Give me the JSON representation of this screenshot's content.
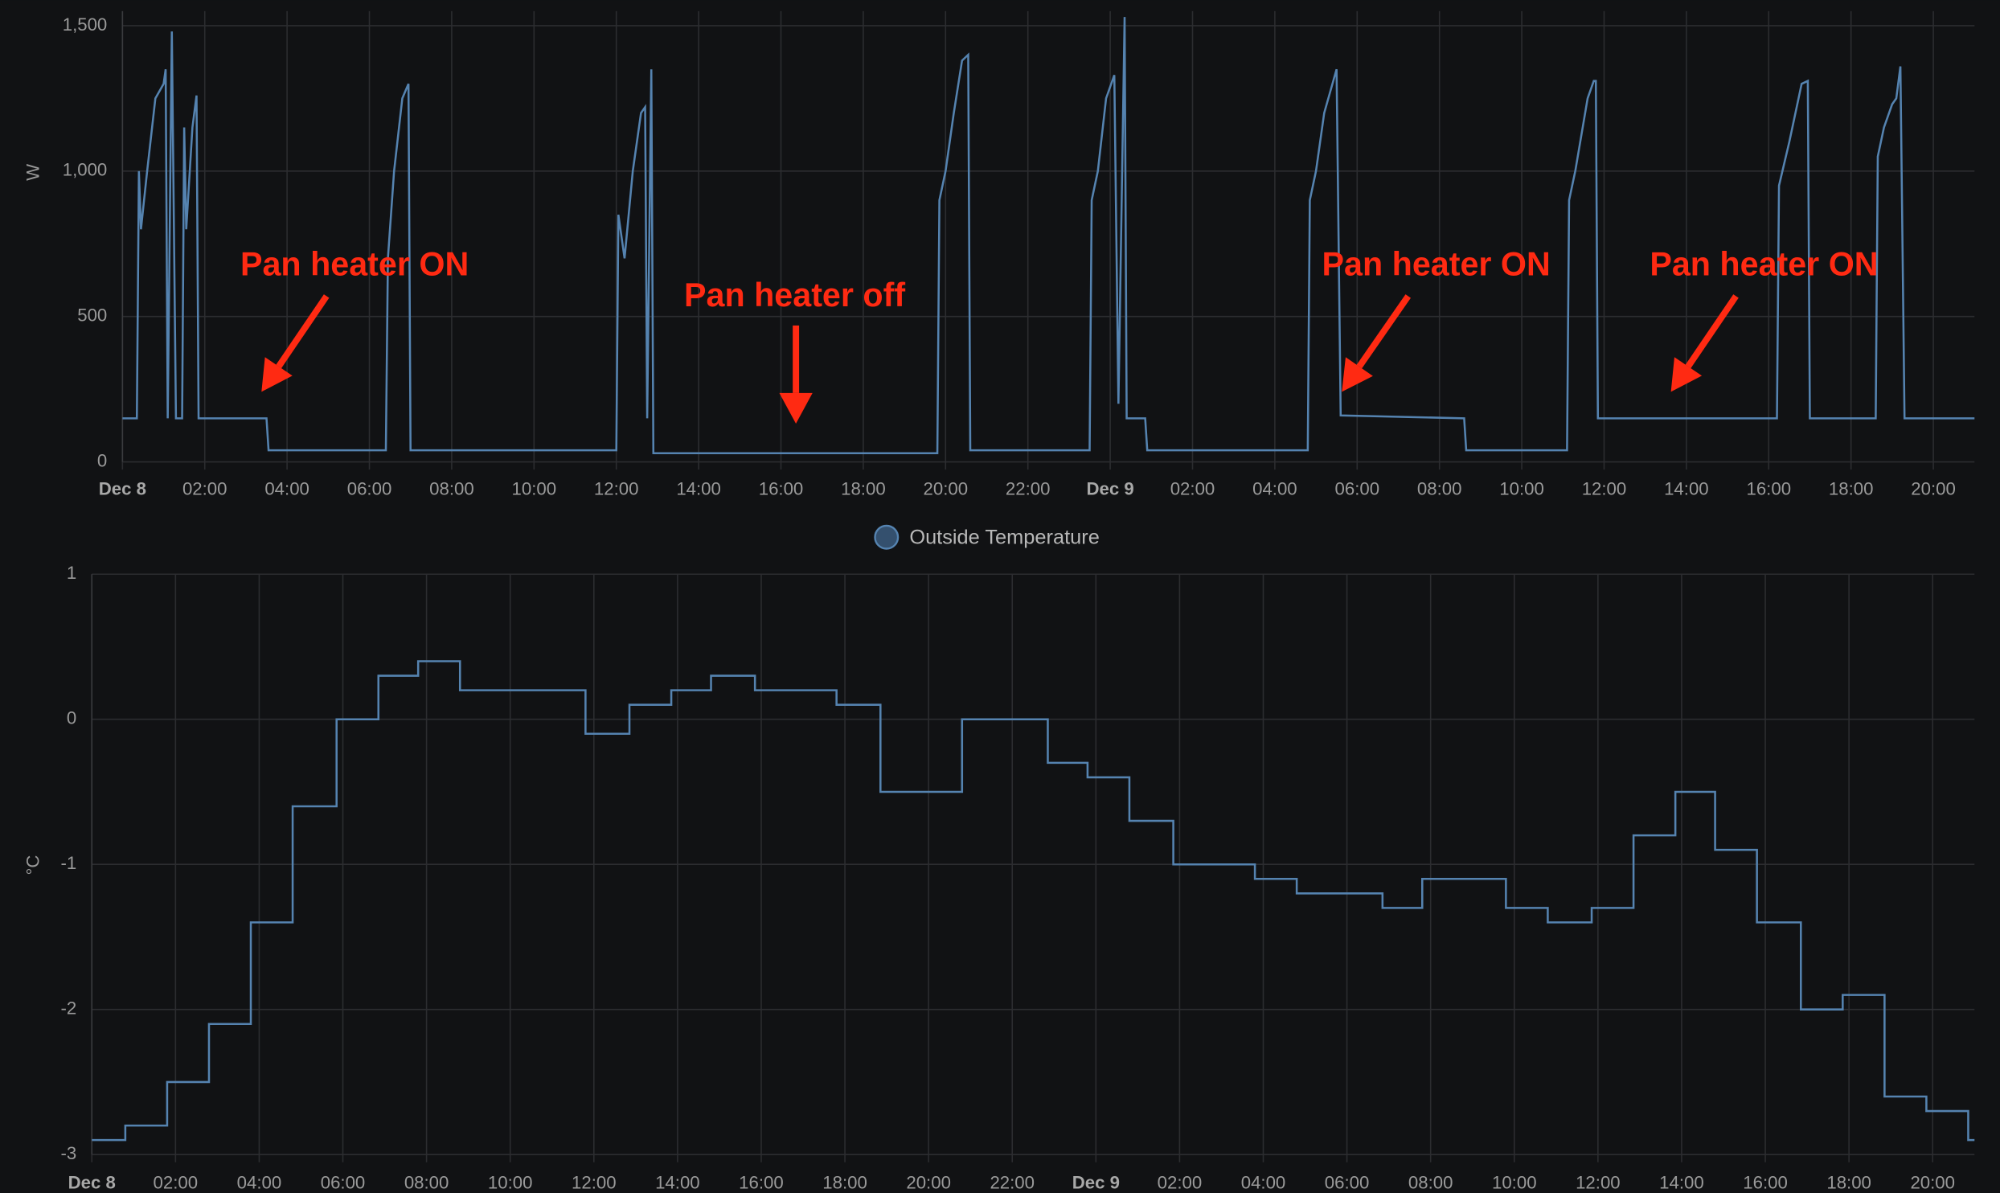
{
  "chart_data": [
    {
      "type": "line",
      "ylabel": "W",
      "x": [
        0,
        0.35,
        0.4,
        0.45,
        0.6,
        0.8,
        1.0,
        1.05,
        1.1,
        1.2,
        1.3,
        1.45,
        1.5,
        1.55,
        1.7,
        1.8,
        1.85,
        3.5,
        3.55,
        6.4,
        6.45,
        6.6,
        6.8,
        6.95,
        7.0,
        12.0,
        12.05,
        12.2,
        12.4,
        12.6,
        12.7,
        12.75,
        12.85,
        12.9,
        19.8,
        19.85,
        20.0,
        20.2,
        20.4,
        20.55,
        20.6,
        23.5,
        23.55,
        23.7,
        23.9,
        24.1,
        24.2,
        24.35,
        24.4,
        24.85,
        24.9,
        28.8,
        28.85,
        29.0,
        29.2,
        29.5,
        29.6,
        32.6,
        32.65,
        35.1,
        35.15,
        35.3,
        35.6,
        35.75,
        35.8,
        35.85,
        40.2,
        40.25,
        40.5,
        40.8,
        40.95,
        41.0,
        42.6,
        42.65,
        42.8,
        43.0,
        43.1,
        43.2,
        43.3,
        45
      ],
      "series": [
        {
          "color": "#5583b0",
          "values": [
            150,
            150,
            1000,
            800,
            1000,
            1250,
            1300,
            1350,
            150,
            1480,
            150,
            150,
            1150,
            800,
            1150,
            1260,
            150,
            150,
            40,
            40,
            700,
            1000,
            1250,
            1300,
            40,
            40,
            850,
            700,
            1000,
            1200,
            1220,
            150,
            1350,
            30,
            30,
            900,
            1000,
            1200,
            1380,
            1400,
            40,
            40,
            900,
            1000,
            1250,
            1330,
            200,
            1530,
            150,
            150,
            40,
            40,
            900,
            1000,
            1200,
            1350,
            160,
            150,
            40,
            40,
            900,
            1000,
            1250,
            1310,
            1310,
            150,
            150,
            950,
            1100,
            1300,
            1310,
            150,
            150,
            1050,
            1150,
            1230,
            1250,
            1360,
            150,
            150
          ]
        }
      ],
      "xlim": [
        0,
        45
      ],
      "xticks": [
        {
          "value": 0,
          "label": "Dec 8"
        },
        {
          "value": 2,
          "label": "02:00"
        },
        {
          "value": 4,
          "label": "04:00"
        },
        {
          "value": 6,
          "label": "06:00"
        },
        {
          "value": 8,
          "label": "08:00"
        },
        {
          "value": 10,
          "label": "10:00"
        },
        {
          "value": 12,
          "label": "12:00"
        },
        {
          "value": 14,
          "label": "14:00"
        },
        {
          "value": 16,
          "label": "16:00"
        },
        {
          "value": 18,
          "label": "18:00"
        },
        {
          "value": 20,
          "label": "20:00"
        },
        {
          "value": 22,
          "label": "22:00"
        },
        {
          "value": 24,
          "label": "Dec 9"
        },
        {
          "value": 26,
          "label": "02:00"
        },
        {
          "value": 28,
          "label": "04:00"
        },
        {
          "value": 30,
          "label": "06:00"
        },
        {
          "value": 32,
          "label": "08:00"
        },
        {
          "value": 34,
          "label": "10:00"
        },
        {
          "value": 36,
          "label": "12:00"
        },
        {
          "value": 38,
          "label": "14:00"
        },
        {
          "value": 40,
          "label": "16:00"
        },
        {
          "value": 42,
          "label": "18:00"
        },
        {
          "value": 44,
          "label": "20:00"
        }
      ],
      "ylim": [
        0,
        1550
      ],
      "yticks": [
        0,
        500,
        {
          "value": 1000,
          "label": "1,000"
        },
        {
          "value": 1500,
          "label": "1,500"
        }
      ],
      "grid": true,
      "step": false,
      "annotations": [
        "Pan heater ON",
        "Pan heater off",
        "Pan heater ON",
        "Pan heater ON"
      ]
    },
    {
      "type": "line",
      "ylabel": "°C",
      "x": [
        0,
        0.8,
        1.8,
        2.8,
        3.8,
        4.8,
        5.85,
        6.85,
        7.8,
        8.8,
        11.8,
        12.85,
        13.85,
        14.8,
        15.85,
        17.8,
        18.85,
        20.8,
        22.85,
        23.8,
        24.8,
        25.85,
        27.8,
        28.8,
        30.85,
        31.8,
        33.8,
        34.8,
        35.85,
        36.85,
        37.85,
        38.8,
        39.8,
        40.85,
        41.85,
        42.85,
        43.85,
        44.85
      ],
      "series": [
        {
          "name": "Outside Temperature",
          "color": "#5583b0",
          "values": [
            -2.9,
            -2.8,
            -2.5,
            -2.1,
            -1.4,
            -0.6,
            0,
            0.3,
            0.4,
            0.2,
            -0.1,
            0.1,
            0.2,
            0.3,
            0.2,
            0.1,
            -0.5,
            0,
            -0.3,
            -0.4,
            -0.7,
            -1,
            -1.1,
            -1.2,
            -1.3,
            -1.1,
            -1.3,
            -1.4,
            -1.3,
            -0.8,
            -0.5,
            -0.9,
            -1.4,
            -2,
            -1.9,
            -2.6,
            -2.7,
            -2.9
          ]
        }
      ],
      "xlim": [
        0,
        45
      ],
      "xticks": [
        {
          "value": 0,
          "label": "Dec 8"
        },
        {
          "value": 2,
          "label": "02:00"
        },
        {
          "value": 4,
          "label": "04:00"
        },
        {
          "value": 6,
          "label": "06:00"
        },
        {
          "value": 8,
          "label": "08:00"
        },
        {
          "value": 10,
          "label": "10:00"
        },
        {
          "value": 12,
          "label": "12:00"
        },
        {
          "value": 14,
          "label": "14:00"
        },
        {
          "value": 16,
          "label": "16:00"
        },
        {
          "value": 18,
          "label": "18:00"
        },
        {
          "value": 20,
          "label": "20:00"
        },
        {
          "value": 22,
          "label": "22:00"
        },
        {
          "value": 24,
          "label": "Dec 9"
        },
        {
          "value": 26,
          "label": "02:00"
        },
        {
          "value": 28,
          "label": "04:00"
        },
        {
          "value": 30,
          "label": "06:00"
        },
        {
          "value": 32,
          "label": "08:00"
        },
        {
          "value": 34,
          "label": "10:00"
        },
        {
          "value": 36,
          "label": "12:00"
        },
        {
          "value": 38,
          "label": "14:00"
        },
        {
          "value": 40,
          "label": "16:00"
        },
        {
          "value": 42,
          "label": "18:00"
        },
        {
          "value": 44,
          "label": "20:00"
        }
      ],
      "ylim": [
        -3,
        1
      ],
      "yticks": [
        -3,
        -2,
        -1,
        0,
        1
      ],
      "grid": true,
      "step": true
    }
  ]
}
